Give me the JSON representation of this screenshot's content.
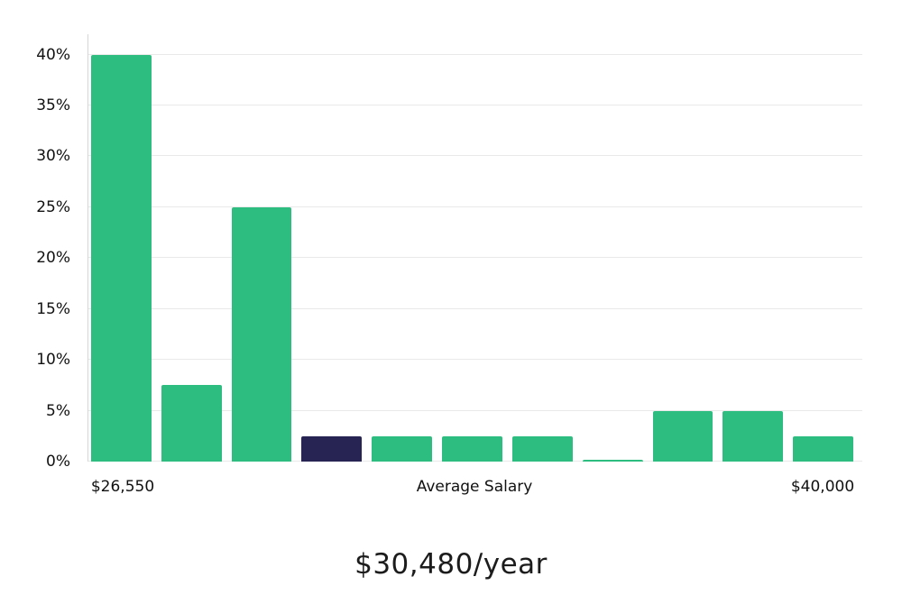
{
  "chart_data": {
    "type": "bar",
    "title": "$30,480/year",
    "values": [
      40,
      7.5,
      25,
      2.5,
      2.5,
      2.5,
      2.5,
      0.2,
      5,
      5,
      2.5
    ],
    "highlight_index": 3,
    "bar_color": "#2EBD80",
    "highlight_color": "#272352",
    "ylim": [
      0,
      42
    ],
    "y_tick_values": [
      0,
      5,
      10,
      15,
      20,
      25,
      30,
      35,
      40
    ],
    "y_tick_labels": [
      "0%",
      "5%",
      "10%",
      "15%",
      "20%",
      "25%",
      "30%",
      "35%",
      "40%"
    ],
    "x_tick_labels": [
      "$26,550",
      "Average Salary",
      "$40,000"
    ],
    "grid": true,
    "legend": "none",
    "xlabel": "",
    "ylabel": ""
  }
}
